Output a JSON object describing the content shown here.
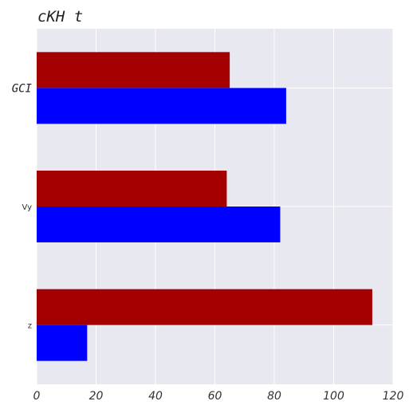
{
  "chart_data": {
    "type": "bar",
    "orientation": "horizontal",
    "title": "cKH t",
    "xlabel": "",
    "ylabel": "",
    "categories": [
      "GCI",
      "Vy",
      "z"
    ],
    "series": [
      {
        "color": "#a50000",
        "values": [
          65,
          64,
          113
        ]
      },
      {
        "color": "#0000ff",
        "values": [
          84,
          82,
          17
        ]
      }
    ],
    "xlim": [
      0,
      120
    ],
    "xticks": [
      0,
      20,
      40,
      60,
      80,
      100,
      120
    ],
    "grid": true,
    "legend": "none",
    "colors": {
      "plot_background": "#e8e8f0",
      "grid": "#ffffff"
    }
  }
}
